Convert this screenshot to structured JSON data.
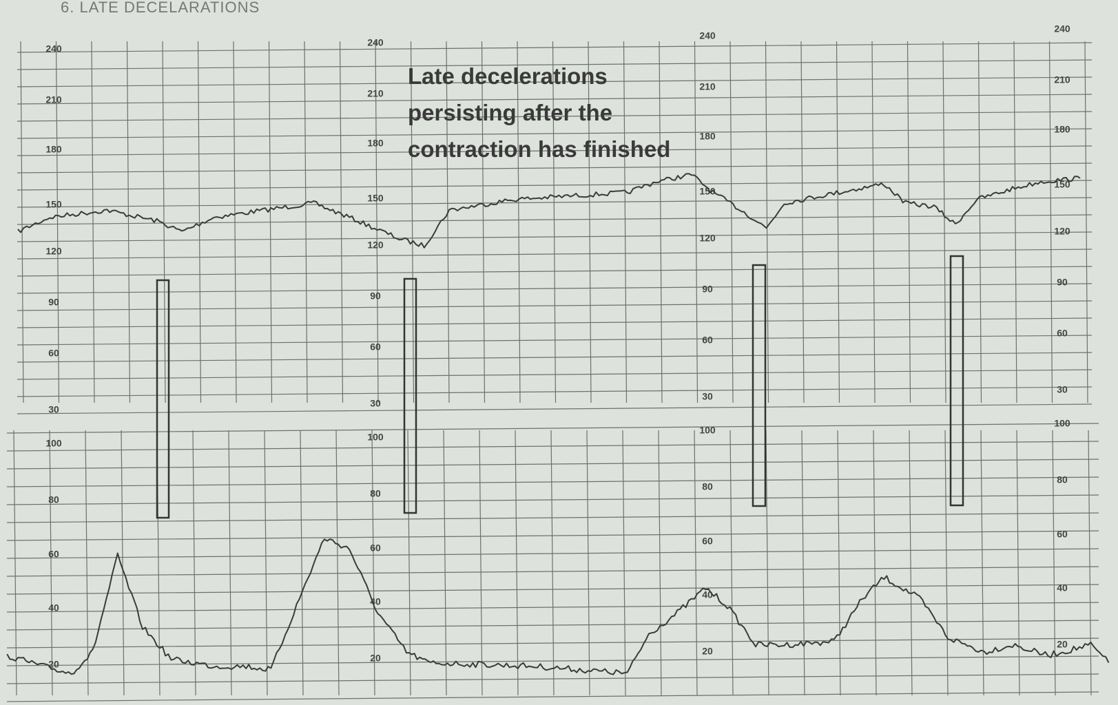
{
  "header": {
    "title": "6. LATE DECELARATIONS"
  },
  "annotation": {
    "lines": [
      "Late decelerations",
      "persisting after the",
      "contraction has finished"
    ]
  },
  "fhr_scale": {
    "labels": [
      "240",
      "210",
      "180",
      "150",
      "120",
      "90",
      "60",
      "30"
    ]
  },
  "toco_scale": {
    "labels": [
      "100",
      "80",
      "60",
      "40",
      "20"
    ]
  }
}
